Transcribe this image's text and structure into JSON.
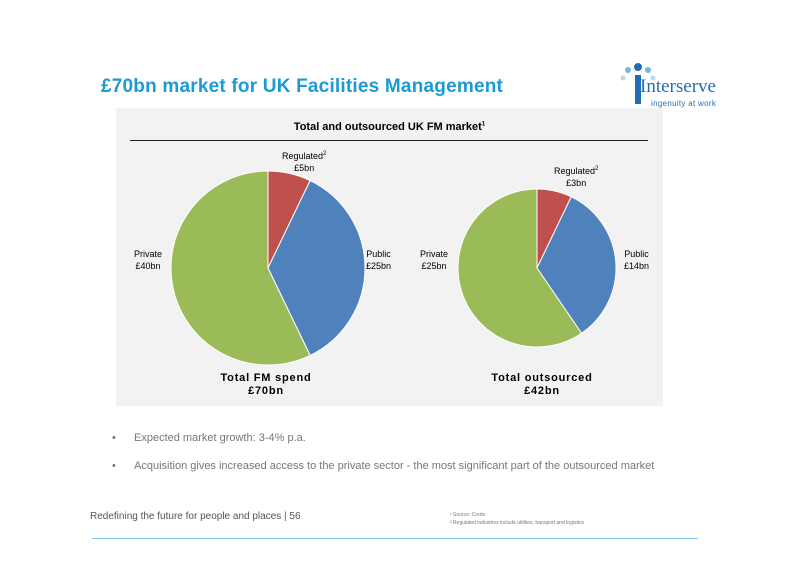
{
  "slide": {
    "title": "£70bn market for UK Facilities Management",
    "logo": {
      "word": "Interserve",
      "tagline": "ingenuity at work"
    },
    "bullets": [
      "Expected market growth: 3-4% p.a.",
      "Acquisition gives increased access to the private sector - the most significant part of the outsourced market"
    ],
    "bullet_glyph": "•",
    "footer": "Redefining the future for people and places | 56",
    "footnotes": [
      "¹ Source: Credo",
      "² Regulated industries include utilities, transport and logistics"
    ]
  },
  "chart_data": {
    "type": "pie",
    "title": "Total and outsourced UK FM market",
    "title_note": "1",
    "pies": [
      {
        "caption_line1": "Total FM spend",
        "caption_line2": "£70bn",
        "slices": [
          {
            "label": "Regulated",
            "note": "2",
            "value_label": "£5bn",
            "value": 5,
            "color": "#c0504d"
          },
          {
            "label": "Public",
            "note": "",
            "value_label": "£25bn",
            "value": 25,
            "color": "#4f81bd"
          },
          {
            "label": "Private",
            "note": "",
            "value_label": "£40bn",
            "value": 40,
            "color": "#9bbb59"
          }
        ]
      },
      {
        "caption_line1": "Total outsourced",
        "caption_line2": "£42bn",
        "slices": [
          {
            "label": "Regulated",
            "note": "2",
            "value_label": "£3bn",
            "value": 3,
            "color": "#c0504d"
          },
          {
            "label": "Public",
            "note": "",
            "value_label": "£14bn",
            "value": 14,
            "color": "#4f81bd"
          },
          {
            "label": "Private",
            "note": "",
            "value_label": "£25bn",
            "value": 25,
            "color": "#9bbb59"
          }
        ]
      }
    ]
  }
}
